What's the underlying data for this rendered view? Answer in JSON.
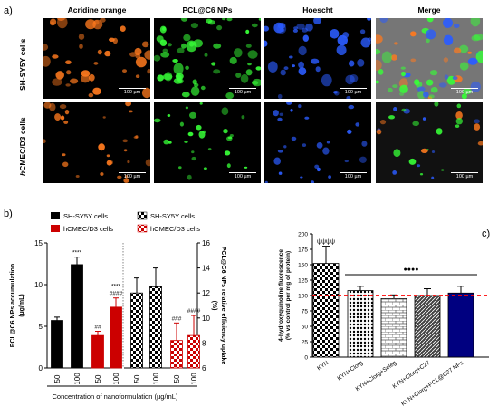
{
  "panel_a": {
    "letter": "a)",
    "columns": [
      "Acridine orange",
      "PCL@C6 NPs",
      "Hoescht",
      "Merge"
    ],
    "rows": [
      {
        "label_plain": "SH-SY5Y cells",
        "label_prefix": "",
        "label_rest": "SH-SY5Y cells"
      },
      {
        "label_plain": "hCMEC/D3 cells",
        "label_prefix": "h",
        "label_rest": "CMEC/D3 cells"
      }
    ],
    "scale_bar": "100 µm",
    "channel_colors": {
      "orange": "#ff7a1e",
      "green": "#37ff37",
      "blue": "#2b5cff",
      "merge_bg": "#767676"
    }
  },
  "panel_b": {
    "letter": "b)",
    "legend_left": [
      {
        "label": "SH-SY5Y cells",
        "color": "#000000",
        "pattern": "solid"
      },
      {
        "label": "hCMEC/D3 cells",
        "color": "#cc0000",
        "pattern": "solid"
      }
    ],
    "legend_right": [
      {
        "label": "SH-SY5Y cells",
        "color": "#000000",
        "pattern": "checker"
      },
      {
        "label": "hCMEC/D3 cells",
        "color": "#cc0000",
        "pattern": "checker"
      }
    ],
    "xlabel": "Concentration of nanoformulation (µg/mL)",
    "ylabel_left_line1": "PCL@C6 NPs accumulation",
    "ylabel_left_line2": "(µg/mL)",
    "ylabel_right_line1": "PCL@C6 NPs relative efficiency uptake",
    "ylabel_right_line2": "(%)"
  },
  "panel_c": {
    "letter": "c)",
    "ylabel_line1": "4-hydroxyquinoline fluorescence",
    "ylabel_line2": "(% vs control per mg of protein)",
    "significance_top": "ψψψψ",
    "significance_line": "●●●●",
    "reference_line_color": "#ff0000"
  },
  "chart_data": [
    {
      "type": "bar",
      "panel": "b-left",
      "axis": "left",
      "categories": [
        "50",
        "100",
        "50",
        "100"
      ],
      "groups": [
        "SH-SY5Y cells",
        "SH-SY5Y cells",
        "hCMEC/D3 cells",
        "hCMEC/D3 cells"
      ],
      "values": [
        5.7,
        12.4,
        3.9,
        7.3
      ],
      "errors": [
        0.4,
        0.9,
        0.5,
        1.1
      ],
      "annotations": [
        "",
        "****",
        "##",
        "****\n####"
      ],
      "colors": [
        "#000000",
        "#000000",
        "#cc0000",
        "#cc0000"
      ],
      "ylim": [
        0,
        15
      ],
      "yticks": [
        0,
        5,
        10,
        15
      ]
    },
    {
      "type": "bar",
      "panel": "b-right",
      "axis": "right",
      "categories": [
        "50",
        "100",
        "50",
        "100"
      ],
      "groups": [
        "SH-SY5Y cells",
        "SH-SY5Y cells",
        "hCMEC/D3 cells",
        "hCMEC/D3 cells"
      ],
      "values": [
        12.0,
        12.5,
        8.2,
        8.6
      ],
      "errors": [
        1.2,
        1.5,
        1.4,
        1.6
      ],
      "annotations": [
        "",
        "",
        "###",
        "####"
      ],
      "colors": [
        "#000000",
        "#000000",
        "#cc0000",
        "#cc0000"
      ],
      "ylim": [
        6,
        16
      ],
      "yticks": [
        6,
        8,
        10,
        12,
        14,
        16
      ]
    },
    {
      "type": "bar",
      "panel": "c",
      "categories": [
        "KYN",
        "KYN+Clorg",
        "KYN+Clorg+Seleg",
        "KYN+Clorg+C27",
        "KYN+Clorg+PCL@C27 NPs"
      ],
      "values": [
        152,
        108,
        95,
        100,
        104
      ],
      "errors": [
        28,
        7,
        6,
        11,
        11
      ],
      "patterns": [
        "checker",
        "dots",
        "bricks",
        "diagonal",
        "navy"
      ],
      "reference_value": 100,
      "ylim": [
        0,
        200
      ],
      "yticks": [
        0,
        25,
        50,
        75,
        100,
        125,
        150,
        175,
        200
      ]
    }
  ]
}
